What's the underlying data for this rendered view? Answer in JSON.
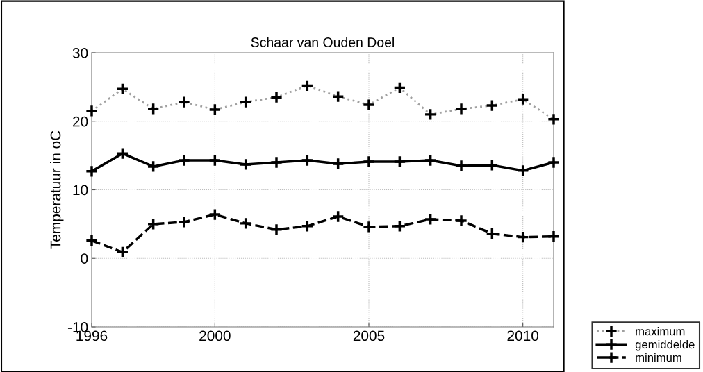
{
  "chart_data": {
    "type": "line",
    "title": "Schaar van Ouden Doel",
    "ylabel": "Temperatuur in oC",
    "x": [
      1996,
      1997,
      1998,
      1999,
      2000,
      2001,
      2002,
      2003,
      2004,
      2005,
      2006,
      2007,
      2008,
      2009,
      2010,
      2011
    ],
    "series": [
      {
        "name": "maximum",
        "color": "#a0a0a0",
        "line_style": "dotted",
        "values": [
          21.5,
          24.7,
          21.8,
          22.8,
          21.7,
          22.8,
          23.5,
          25.2,
          23.6,
          22.4,
          24.9,
          21.0,
          21.8,
          22.3,
          23.2,
          20.3
        ]
      },
      {
        "name": "gemiddelde",
        "color": "#000000",
        "line_style": "solid",
        "values": [
          12.7,
          15.3,
          13.4,
          14.3,
          14.3,
          13.7,
          14.0,
          14.3,
          13.8,
          14.1,
          14.1,
          14.3,
          13.5,
          13.6,
          12.8,
          14.0
        ]
      },
      {
        "name": "minimum",
        "color": "#000000",
        "line_style": "dashed",
        "values": [
          2.6,
          0.9,
          5.0,
          5.3,
          6.4,
          5.1,
          4.2,
          4.7,
          6.1,
          4.6,
          4.7,
          5.7,
          5.5,
          3.6,
          3.1,
          3.2
        ]
      }
    ],
    "xlim": [
      1996,
      2011
    ],
    "xticks": [
      1996,
      2000,
      2005,
      2010
    ],
    "ylim": [
      -10,
      30
    ],
    "yticks": [
      -10,
      0,
      10,
      20,
      30
    ],
    "grid": true,
    "legend": "bottom right",
    "marker": "cross"
  }
}
